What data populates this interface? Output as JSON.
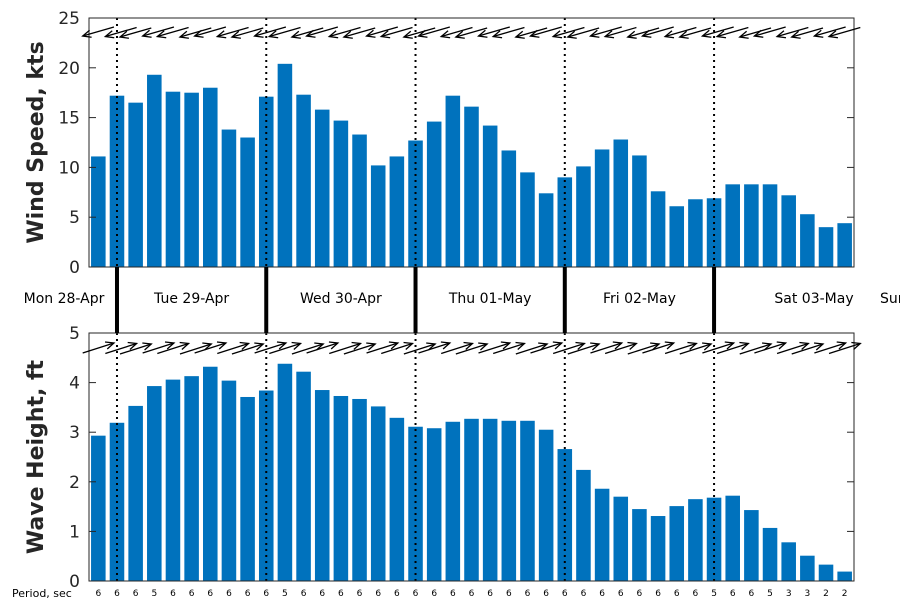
{
  "colors": {
    "bar": "#0072BD",
    "axis": "#262626",
    "marker": "#000000"
  },
  "days": [
    "Mon 28-Apr",
    "Tue 29-Apr",
    "Wed 30-Apr",
    "Thu 01-May",
    "Fri 02-May",
    "Sat 03-May",
    "Sun"
  ],
  "period_title": "Period, sec",
  "chart_data": [
    {
      "type": "bar",
      "ylabel": "Wind Speed, kts",
      "ylim": [
        0,
        25
      ],
      "yticks": [
        0,
        5,
        10,
        15,
        20,
        25
      ],
      "values": [
        11.1,
        17.2,
        16.5,
        19.3,
        17.6,
        17.5,
        18.0,
        13.8,
        13.0,
        17.1,
        20.4,
        17.3,
        15.8,
        14.7,
        13.3,
        10.2,
        11.1,
        12.7,
        14.6,
        17.2,
        16.1,
        14.2,
        11.7,
        9.5,
        7.4,
        9.0,
        10.1,
        11.8,
        12.8,
        11.2,
        7.6,
        6.1,
        6.8,
        6.9,
        8.3,
        8.3,
        8.3,
        7.2,
        5.3,
        4.0,
        4.4
      ],
      "direction_markers": "arrows, one per bar"
    },
    {
      "type": "bar",
      "ylabel": "Wave Height, ft",
      "ylim": [
        0,
        5
      ],
      "yticks": [
        0,
        1,
        2,
        3,
        4,
        5
      ],
      "values": [
        2.93,
        3.19,
        3.53,
        3.93,
        4.06,
        4.13,
        4.32,
        4.04,
        3.71,
        3.84,
        4.38,
        4.22,
        3.85,
        3.73,
        3.67,
        3.52,
        3.29,
        3.11,
        3.08,
        3.21,
        3.27,
        3.27,
        3.23,
        3.23,
        3.05,
        2.66,
        2.24,
        1.86,
        1.7,
        1.45,
        1.31,
        1.51,
        1.65,
        1.68,
        1.72,
        1.43,
        1.07,
        0.78,
        0.51,
        0.33,
        0.19
      ],
      "period_sec": [
        "6",
        "6",
        "6",
        "5",
        "6",
        "6",
        "6",
        "6",
        "6",
        "6",
        "5",
        "6",
        "6",
        "6",
        "6",
        "6",
        "6",
        "6",
        "6",
        "6",
        "6",
        "6",
        "6",
        "6",
        "6",
        "6",
        "6",
        "6",
        "6",
        "6",
        "6",
        "6",
        "6",
        "5",
        "6",
        "6",
        "5",
        "3",
        "3",
        "2",
        "2"
      ],
      "direction_markers": "arrows, one per bar"
    }
  ]
}
